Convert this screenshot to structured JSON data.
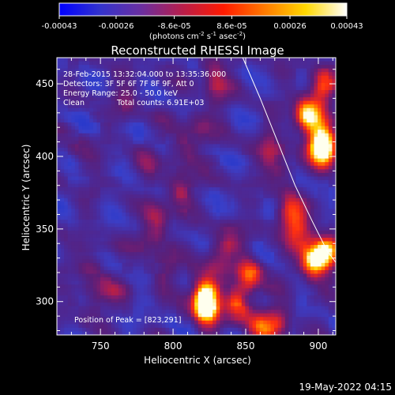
{
  "colorbar": {
    "ticks": [
      "-0.00043",
      "-0.00026",
      "-8.6e-05",
      "8.6e-05",
      "0.00026",
      "0.00043"
    ],
    "tick_values": [
      -0.00043,
      -0.00026,
      -8.6e-05,
      8.6e-05,
      0.00026,
      0.00043
    ],
    "range": [
      -0.00043,
      0.00043
    ],
    "unit_main": "(photons cm",
    "unit_sup1": "-2",
    "unit_mid1": " s",
    "unit_sup2": "-1",
    "unit_mid2": " asec",
    "unit_sup3": "-2",
    "unit_end": ")",
    "colormap": [
      "#0000ff",
      "#3333cc",
      "#6b2fa0",
      "#b81d4a",
      "#ff1a00",
      "#ff7a00",
      "#ffd800",
      "#ffffff"
    ]
  },
  "annotations": {
    "time_range": "28-Feb-2015 13:32:04.000 to 13:35:36.000",
    "detectors": "Detectors: 3F 5F 6F 7F 8F 9F, Att 0",
    "energy": "Energy Range: 25.0 - 50.0 keV",
    "algorithm": "Clean",
    "counts": "Total counts: 6.91E+03",
    "peak": "Position of Peak = [823,291]"
  },
  "footer": {
    "timestamp": "19-May-2022 04:15"
  },
  "chart_data": {
    "type": "heatmap",
    "title": "Reconstructed RHESSI Image",
    "xlabel": "Heliocentric X (arcsec)",
    "ylabel": "Heliocentric Y (arcsec)",
    "xlim": [
      720,
      912
    ],
    "ylim": [
      277,
      468
    ],
    "xticks": [
      750,
      800,
      850,
      900
    ],
    "yticks": [
      300,
      350,
      400,
      450
    ],
    "value_range": [
      -0.00043,
      0.00043
    ],
    "peak_position": [
      823,
      291
    ],
    "limb_curve": {
      "x": [
        848,
        860,
        872,
        884,
        896,
        906,
        912
      ],
      "y": [
        468,
        440,
        410,
        380,
        355,
        335,
        327
      ]
    },
    "bright_regions": [
      {
        "x": 823,
        "y": 294,
        "level": 1.0
      },
      {
        "x": 822,
        "y": 305,
        "level": 0.85
      },
      {
        "x": 845,
        "y": 296,
        "level": 0.6
      },
      {
        "x": 853,
        "y": 317,
        "level": 0.7
      },
      {
        "x": 897,
        "y": 327,
        "level": 0.9
      },
      {
        "x": 906,
        "y": 333,
        "level": 0.85
      },
      {
        "x": 902,
        "y": 410,
        "level": 0.8
      },
      {
        "x": 893,
        "y": 427,
        "level": 0.95
      },
      {
        "x": 905,
        "y": 403,
        "level": 0.75
      },
      {
        "x": 903,
        "y": 447,
        "level": 0.7
      },
      {
        "x": 880,
        "y": 360,
        "level": 0.55
      },
      {
        "x": 888,
        "y": 348,
        "level": 0.5
      },
      {
        "x": 790,
        "y": 358,
        "level": 0.35
      },
      {
        "x": 805,
        "y": 375,
        "level": 0.4
      },
      {
        "x": 785,
        "y": 342,
        "level": 0.3
      },
      {
        "x": 795,
        "y": 320,
        "level": 0.25
      },
      {
        "x": 830,
        "y": 328,
        "level": 0.3
      },
      {
        "x": 840,
        "y": 340,
        "level": 0.28
      },
      {
        "x": 746,
        "y": 302,
        "level": 0.3
      },
      {
        "x": 745,
        "y": 325,
        "level": 0.22
      },
      {
        "x": 760,
        "y": 305,
        "level": 0.2
      },
      {
        "x": 808,
        "y": 403,
        "level": 0.3
      },
      {
        "x": 818,
        "y": 420,
        "level": 0.25
      },
      {
        "x": 830,
        "y": 444,
        "level": 0.3
      },
      {
        "x": 828,
        "y": 460,
        "level": 0.28
      },
      {
        "x": 867,
        "y": 403,
        "level": 0.3
      },
      {
        "x": 875,
        "y": 390,
        "level": 0.28
      },
      {
        "x": 768,
        "y": 438,
        "level": 0.22
      },
      {
        "x": 780,
        "y": 395,
        "level": 0.2
      },
      {
        "x": 738,
        "y": 402,
        "level": 0.18
      },
      {
        "x": 860,
        "y": 280,
        "level": 0.5
      },
      {
        "x": 873,
        "y": 285,
        "level": 0.45
      }
    ]
  }
}
